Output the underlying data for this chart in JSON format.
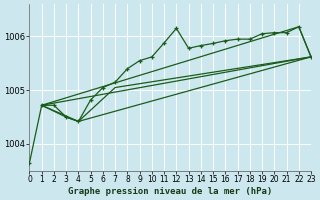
{
  "title": "Graphe pression niveau de la mer (hPa)",
  "bg_color": "#cce8ee",
  "grid_color": "#ffffff",
  "line_color": "#1a5c1a",
  "xlim": [
    0,
    23
  ],
  "ylim": [
    1003.5,
    1006.6
  ],
  "yticks": [
    1004,
    1005,
    1006
  ],
  "xticks": [
    0,
    1,
    2,
    3,
    4,
    5,
    6,
    7,
    8,
    9,
    10,
    11,
    12,
    13,
    14,
    15,
    16,
    17,
    18,
    19,
    20,
    21,
    22,
    23
  ],
  "main_series": [
    [
      0,
      1003.65
    ],
    [
      1,
      1004.72
    ],
    [
      2,
      1004.72
    ],
    [
      3,
      1004.5
    ],
    [
      4,
      1004.42
    ],
    [
      5,
      1004.82
    ],
    [
      6,
      1005.05
    ],
    [
      7,
      1005.15
    ],
    [
      8,
      1005.4
    ],
    [
      9,
      1005.55
    ],
    [
      10,
      1005.62
    ],
    [
      11,
      1005.88
    ],
    [
      12,
      1006.15
    ],
    [
      13,
      1005.78
    ],
    [
      14,
      1005.83
    ],
    [
      15,
      1005.87
    ],
    [
      16,
      1005.92
    ],
    [
      17,
      1005.95
    ],
    [
      18,
      1005.95
    ],
    [
      19,
      1006.05
    ],
    [
      20,
      1006.07
    ],
    [
      21,
      1006.07
    ],
    [
      22,
      1006.18
    ],
    [
      23,
      1005.62
    ]
  ],
  "envelope_upper_line": [
    [
      1,
      1004.72
    ],
    [
      2,
      1004.72
    ],
    [
      3,
      1004.5
    ],
    [
      4,
      1004.42
    ],
    [
      5,
      1004.82
    ],
    [
      6,
      1005.05
    ],
    [
      7,
      1005.15
    ],
    [
      8,
      1005.4
    ],
    [
      9,
      1005.55
    ],
    [
      10,
      1005.62
    ],
    [
      11,
      1005.88
    ],
    [
      12,
      1006.15
    ],
    [
      13,
      1005.78
    ],
    [
      14,
      1005.83
    ],
    [
      15,
      1005.87
    ],
    [
      16,
      1005.92
    ],
    [
      17,
      1005.95
    ],
    [
      18,
      1005.95
    ],
    [
      19,
      1006.05
    ],
    [
      20,
      1006.07
    ],
    [
      21,
      1006.07
    ],
    [
      22,
      1006.18
    ],
    [
      23,
      1005.62
    ]
  ],
  "envelope_lower_line": [
    [
      1,
      1004.72
    ],
    [
      3,
      1004.5
    ],
    [
      4,
      1004.42
    ],
    [
      7,
      1005.05
    ],
    [
      23,
      1005.62
    ]
  ],
  "trend_line": [
    [
      1,
      1004.72
    ],
    [
      23,
      1005.62
    ]
  ],
  "parallelogram": [
    [
      1,
      1004.72
    ],
    [
      22,
      1006.18
    ],
    [
      23,
      1005.62
    ],
    [
      4,
      1004.42
    ]
  ],
  "xlabel_fontsize": 6.5,
  "ytick_fontsize": 6,
  "xtick_fontsize": 5.5,
  "title_color": "#1a3a1a"
}
